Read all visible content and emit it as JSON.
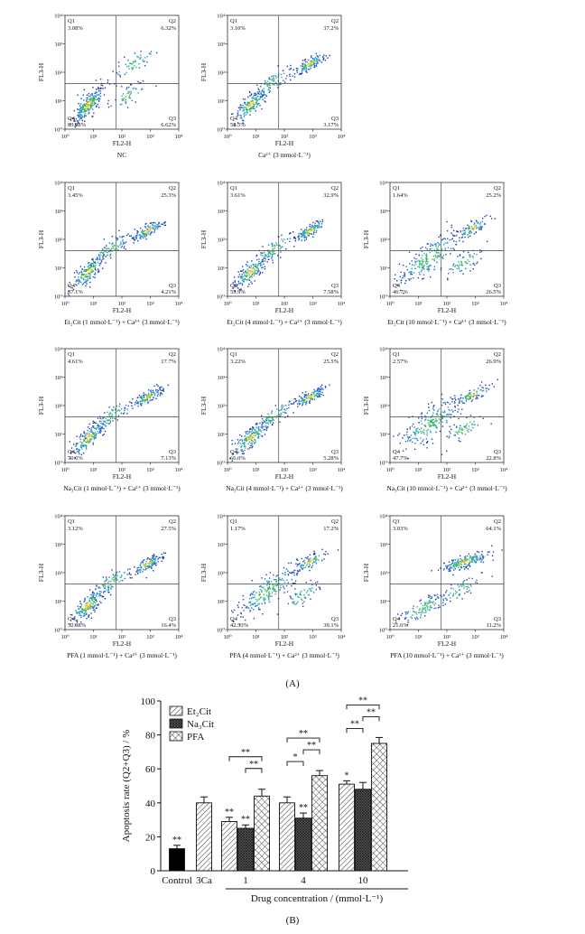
{
  "panelA": {
    "caption": "(A)",
    "xlabel": "FL2-H",
    "ylabel": "FL3-H",
    "ticks": [
      "10⁰",
      "10¹",
      "10²",
      "10³",
      "10⁴"
    ],
    "quad_names": [
      "Q1",
      "Q2",
      "Q3",
      "Q4"
    ],
    "plots": [
      {
        "label": "NC",
        "q1": "3.08%",
        "q2": "6.32%",
        "q3": "6.62%",
        "q4": "83.98%",
        "style": "low"
      },
      {
        "label": "Ca²⁺ (3 mmol·L⁻¹)",
        "q1": "3.10%",
        "q2": "37.2%",
        "q3": "3.17%",
        "q4": "56.5%",
        "style": "diag"
      },
      {
        "label": "",
        "q1": "",
        "q2": "",
        "q3": "",
        "q4": "",
        "style": "empty"
      },
      {
        "label": "Et₂Cit (1 mmol·L⁻¹) + Ca²⁺ (3 mmol·L⁻¹)",
        "q1": "3.45%",
        "q2": "25.3%",
        "q3": "4.21%",
        "q4": "67.1%",
        "style": "diag"
      },
      {
        "label": "Et₂Cit (4 mmol·L⁻¹) + Ca²⁺ (3 mmol·L⁻¹)",
        "q1": "3.61%",
        "q2": "32.9%",
        "q3": "7.58%",
        "q4": "55.9%",
        "style": "diag"
      },
      {
        "label": "Et₂Cit (10 mmol·L⁻¹) + Ca²⁺ (3 mmol·L⁻¹)",
        "q1": "1.64%",
        "q2": "25.2%",
        "q3": "26.5%",
        "q4": "46.7%",
        "style": "spread"
      },
      {
        "label": "Na₃Cit (1 mmol·L⁻¹) + Ca²⁺ (3 mmol·L⁻¹)",
        "q1": "4.61%",
        "q2": "17.7%",
        "q3": "7.13%",
        "q4": "70.6%",
        "style": "diag"
      },
      {
        "label": "Na₃Cit (4 mmol·L⁻¹) + Ca²⁺ (3 mmol·L⁻¹)",
        "q1": "3.22%",
        "q2": "25.5%",
        "q3": "5.28%",
        "q4": "66.0%",
        "style": "diag"
      },
      {
        "label": "Na₃Cit (10 mmol·L⁻¹) + Ca²⁺ (3 mmol·L⁻¹)",
        "q1": "2.57%",
        "q2": "26.9%",
        "q3": "22.8%",
        "q4": "47.7%",
        "style": "spread"
      },
      {
        "label": "PFA (1 mmol·L⁻¹) + Ca²⁺ (3 mmol·L⁻¹)",
        "q1": "3.12%",
        "q2": "27.5%",
        "q3": "16.4%",
        "q4": "52.98%",
        "style": "diag"
      },
      {
        "label": "PFA (4 mmol·L⁻¹) + Ca²⁺ (3 mmol·L⁻¹)",
        "q1": "1.17%",
        "q2": "17.2%",
        "q3": "39.1%",
        "q4": "42.53%",
        "style": "spread"
      },
      {
        "label": "PFA (10 mmol·L⁻¹) + Ca²⁺ (3 mmol·L⁻¹)",
        "q1": "3.03%",
        "q2": "64.1%",
        "q3": "11.2%",
        "q4": "21.6%",
        "style": "high"
      }
    ]
  },
  "chart_data": {
    "type": "bar",
    "caption": "(B)",
    "ylabel": "Apoptosis rate (Q2+Q3) / %",
    "xlabel": "Drug concentration / (mmol·L⁻¹)",
    "ylim": [
      0,
      100
    ],
    "yticks": [
      0,
      20,
      40,
      60,
      80,
      100
    ],
    "single": [
      {
        "category": "Control",
        "value": 13,
        "err": 2,
        "sig": "**",
        "color": "#000000"
      },
      {
        "category": "3Ca",
        "value": 40,
        "err": 3.5,
        "sig": "",
        "color": "#ffffff"
      }
    ],
    "categories": [
      "1",
      "4",
      "10"
    ],
    "series": [
      {
        "name": "Et₂Cit",
        "values": [
          29,
          40,
          51
        ],
        "errors": [
          2.5,
          3.5,
          2
        ],
        "sig": [
          "**",
          "",
          "*"
        ]
      },
      {
        "name": "Na₃Cit",
        "values": [
          25,
          31,
          48
        ],
        "errors": [
          2,
          3,
          4
        ],
        "sig": [
          "**",
          "**",
          ""
        ]
      },
      {
        "name": "PFA",
        "values": [
          44,
          56,
          75
        ],
        "errors": [
          4,
          3,
          3.5
        ],
        "sig": [
          "",
          "",
          ""
        ]
      }
    ],
    "brackets": [
      {
        "group": 0,
        "from": 0,
        "to": 2,
        "label": "**"
      },
      {
        "group": 0,
        "from": 1,
        "to": 2,
        "label": "**"
      },
      {
        "group": 1,
        "from": 0,
        "to": 2,
        "label": "**"
      },
      {
        "group": 1,
        "from": 1,
        "to": 2,
        "label": "**"
      },
      {
        "group": 1,
        "from": 0,
        "to": 1,
        "label": "*"
      },
      {
        "group": 2,
        "from": 0,
        "to": 2,
        "label": "**"
      },
      {
        "group": 2,
        "from": 1,
        "to": 2,
        "label": "**"
      },
      {
        "group": 2,
        "from": 0,
        "to": 1,
        "label": "**"
      }
    ]
  }
}
